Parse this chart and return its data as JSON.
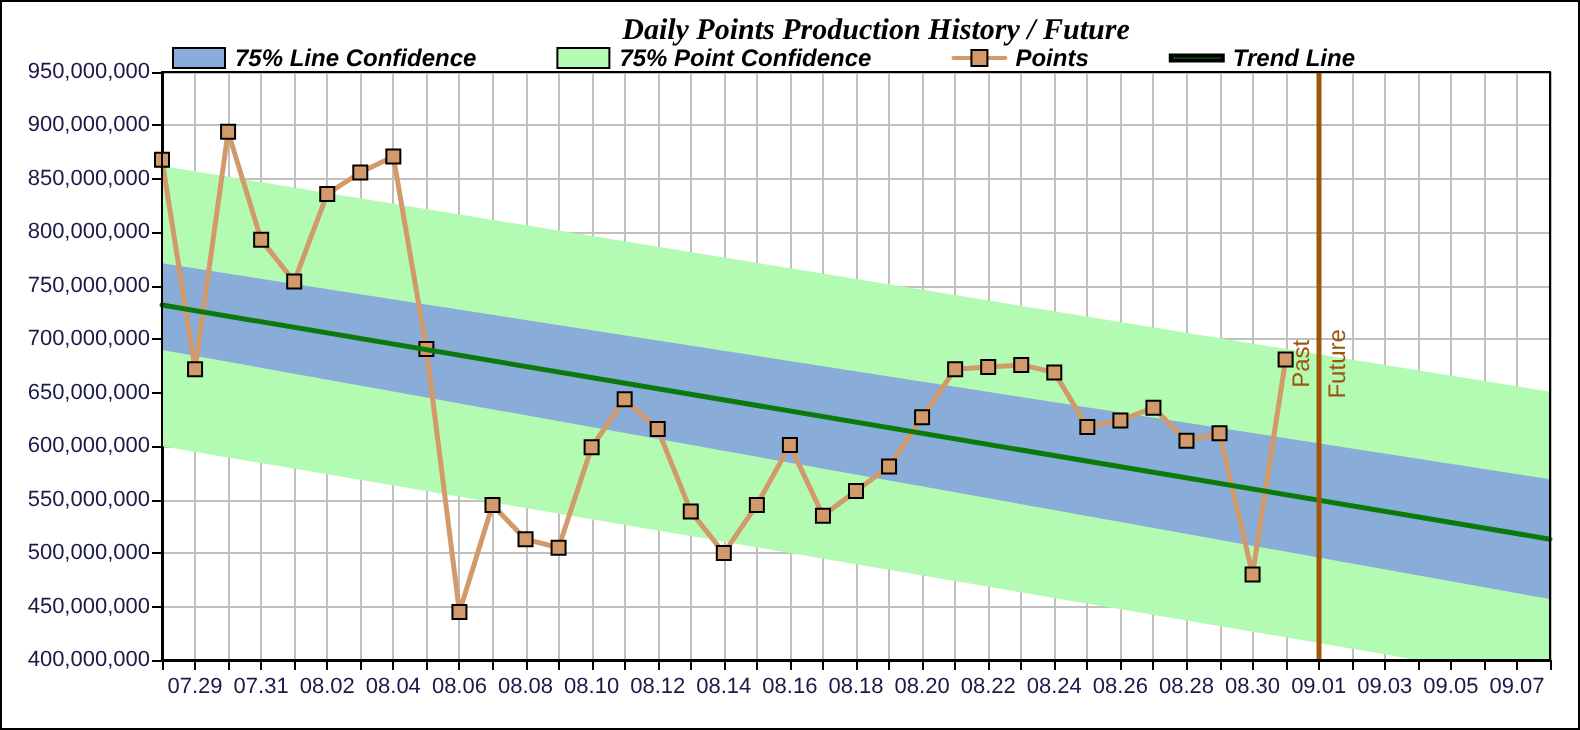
{
  "chart_data": {
    "type": "line",
    "title": "Daily Points Production History / Future",
    "xlim": [
      "--07-28",
      "--09-08"
    ],
    "xticks": [
      {
        "value": "--07-28",
        "label": null
      },
      {
        "value": "--07-29",
        "label": "07.29"
      },
      {
        "value": "--07-30",
        "label": null
      },
      {
        "value": "--07-31",
        "label": "07.31"
      },
      {
        "value": "--08-01",
        "label": null
      },
      {
        "value": "--08-02",
        "label": "08.02"
      },
      {
        "value": "--08-03",
        "label": null
      },
      {
        "value": "--08-04",
        "label": "08.04"
      },
      {
        "value": "--08-05",
        "label": null
      },
      {
        "value": "--08-06",
        "label": "08.06"
      },
      {
        "value": "--08-07",
        "label": null
      },
      {
        "value": "--08-08",
        "label": "08.08"
      },
      {
        "value": "--08-09",
        "label": null
      },
      {
        "value": "--08-10",
        "label": "08.10"
      },
      {
        "value": "--08-11",
        "label": null
      },
      {
        "value": "--08-12",
        "label": "08.12"
      },
      {
        "value": "--08-13",
        "label": null
      },
      {
        "value": "--08-14",
        "label": "08.14"
      },
      {
        "value": "--08-15",
        "label": null
      },
      {
        "value": "--08-16",
        "label": "08.16"
      },
      {
        "value": "--08-17",
        "label": null
      },
      {
        "value": "--08-18",
        "label": "08.18"
      },
      {
        "value": "--08-19",
        "label": null
      },
      {
        "value": "--08-20",
        "label": "08.20"
      },
      {
        "value": "--08-21",
        "label": null
      },
      {
        "value": "--08-22",
        "label": "08.22"
      },
      {
        "value": "--08-23",
        "label": null
      },
      {
        "value": "--08-24",
        "label": "08.24"
      },
      {
        "value": "--08-25",
        "label": null
      },
      {
        "value": "--08-26",
        "label": "08.26"
      },
      {
        "value": "--08-27",
        "label": null
      },
      {
        "value": "--08-28",
        "label": "08.28"
      },
      {
        "value": "--08-29",
        "label": null
      },
      {
        "value": "--08-30",
        "label": "08.30"
      },
      {
        "value": "--08-31",
        "label": null
      },
      {
        "value": "--09-01",
        "label": "09.01"
      },
      {
        "value": "--09-02",
        "label": null
      },
      {
        "value": "--09-03",
        "label": "09.03"
      },
      {
        "value": "--09-04",
        "label": null
      },
      {
        "value": "--09-05",
        "label": "09.05"
      },
      {
        "value": "--09-06",
        "label": null
      },
      {
        "value": "--09-07",
        "label": "09.07"
      },
      {
        "value": "--09-08",
        "label": null
      }
    ],
    "ylim": [
      400000000,
      950000000
    ],
    "yticks": [
      {
        "value": 400000000,
        "label": "400,000,000"
      },
      {
        "value": 450000000,
        "label": "450,000,000"
      },
      {
        "value": 500000000,
        "label": "500,000,000"
      },
      {
        "value": 550000000,
        "label": "550,000,000"
      },
      {
        "value": 600000000,
        "label": "600,000,000"
      },
      {
        "value": 650000000,
        "label": "650,000,000"
      },
      {
        "value": 700000000,
        "label": "700,000,000"
      },
      {
        "value": 750000000,
        "label": "750,000,000"
      },
      {
        "value": 800000000,
        "label": "800,000,000"
      },
      {
        "value": 850000000,
        "label": "850,000,000"
      },
      {
        "value": 900000000,
        "label": "900,000,000"
      },
      {
        "value": 950000000,
        "label": "950,000,000"
      }
    ],
    "grid": true,
    "legend": "top",
    "marker": "square",
    "series": [
      {
        "name": "75% Line Confidence",
        "type": "area",
        "color": "#8aacd8",
        "x": [
          "--07-28",
          "--09-08"
        ],
        "values": [
          null,
          null
        ],
        "lower": [
          690000000,
          457000000
        ],
        "upper": [
          771000000,
          569000000
        ]
      },
      {
        "name": "75% Point Confidence",
        "type": "area",
        "color": "#b3fab3",
        "x": [
          "--07-28",
          "--09-01",
          "--09-04",
          "--09-08"
        ],
        "values": [
          null,
          null,
          null,
          null
        ],
        "lower": [
          600000000,
          416000000,
          400000000,
          400000000
        ],
        "upper": [
          862000000,
          686000000,
          671000000,
          651000000
        ]
      },
      {
        "name": "Points",
        "type": "line",
        "color": "#d29a6a",
        "x": [
          "--07-28",
          "--07-29",
          "--07-30",
          "--07-31",
          "--08-01",
          "--08-02",
          "--08-03",
          "--08-04",
          "--08-05",
          "--08-06",
          "--08-07",
          "--08-08",
          "--08-09",
          "--08-10",
          "--08-11",
          "--08-12",
          "--08-13",
          "--08-14",
          "--08-15",
          "--08-16",
          "--08-17",
          "--08-18",
          "--08-19",
          "--08-20",
          "--08-21",
          "--08-22",
          "--08-23",
          "--08-24",
          "--08-25",
          "--08-26",
          "--08-27",
          "--08-28",
          "--08-29",
          "--08-30",
          "--08-31"
        ],
        "values": [
          868000000,
          672000000,
          894000000,
          793000000,
          754000000,
          836000000,
          856000000,
          871000000,
          691000000,
          445000000,
          545000000,
          513000000,
          505000000,
          599000000,
          644000000,
          616000000,
          539000000,
          500000000,
          545000000,
          601000000,
          535000000,
          558000000,
          581000000,
          627000000,
          672000000,
          674000000,
          676000000,
          669000000,
          618000000,
          624000000,
          636000000,
          605000000,
          612000000,
          480000000,
          681000000
        ]
      },
      {
        "name": "Trend Line",
        "type": "line",
        "color": "#0a7a0a",
        "x": [
          "--07-28",
          "--09-08"
        ],
        "values": [
          732000000,
          513000000
        ],
        "marker": "none"
      }
    ],
    "ref_lines": [
      {
        "axis": "x",
        "value": "--09-01",
        "label": "Past",
        "color": "#a0560a"
      }
    ],
    "annotations": [
      {
        "text": "Future",
        "x": "--09-01",
        "y": 677000000
      }
    ]
  }
}
